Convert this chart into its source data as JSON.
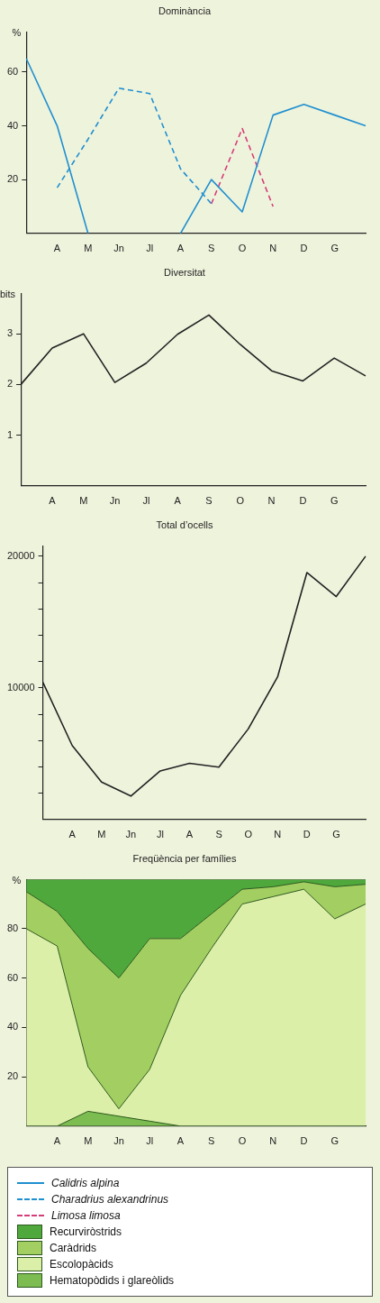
{
  "chart_data": [
    {
      "type": "line",
      "title": "Dominància",
      "ylabel": "%",
      "categories": [
        null,
        "A",
        "M",
        "Jn",
        "Jl",
        "A",
        "S",
        "O",
        "N",
        "D",
        "G",
        null
      ],
      "ylim": [
        0,
        75
      ],
      "yticks": [
        20,
        40,
        60
      ],
      "legend": "bottom",
      "series": [
        {
          "name": "Calidris alpina",
          "color": "#1f8fd0",
          "line_style": "solid",
          "values": [
            65,
            40,
            0,
            null,
            null,
            0,
            20,
            8,
            44,
            48,
            44,
            40
          ]
        },
        {
          "name": "Charadrius alexandrinus",
          "color": "#1f8fd0",
          "line_style": "dashed",
          "values": [
            null,
            17,
            35,
            54,
            52,
            24,
            11,
            null,
            null,
            null,
            null,
            null
          ]
        },
        {
          "name": "Limosa limosa",
          "color": "#d63c78",
          "line_style": "dashed",
          "values": [
            null,
            null,
            null,
            null,
            null,
            null,
            11,
            39,
            10,
            null,
            null,
            null
          ]
        }
      ]
    },
    {
      "type": "line",
      "title": "Diversitat",
      "ylabel": "bits",
      "categories": [
        null,
        "A",
        "M",
        "Jn",
        "Jl",
        "A",
        "S",
        "O",
        "N",
        "D",
        "G",
        null
      ],
      "ylim": [
        0,
        3.8
      ],
      "yticks": [
        1,
        2,
        3
      ],
      "series": [
        {
          "color": "#222222",
          "values": [
            2.0,
            2.72,
            3.0,
            2.04,
            2.42,
            2.99,
            3.37,
            2.79,
            2.27,
            2.07,
            2.52,
            2.17
          ]
        }
      ]
    },
    {
      "type": "line",
      "title": "Total d’ocells",
      "categories": [
        null,
        "A",
        "M",
        "Jn",
        "Jl",
        "A",
        "S",
        "O",
        "N",
        "D",
        "G",
        null
      ],
      "ylim": [
        0,
        20800
      ],
      "yticks": [
        {
          "value": 2000,
          "label": null
        },
        {
          "value": 4000,
          "label": null
        },
        {
          "value": 6000,
          "label": null
        },
        {
          "value": 8000,
          "label": null
        },
        10000,
        {
          "value": 12000,
          "label": null
        },
        {
          "value": 14000,
          "label": null
        },
        {
          "value": 16000,
          "label": null
        },
        {
          "value": 18000,
          "label": null
        },
        20000
      ],
      "series": [
        {
          "color": "#222222",
          "values": [
            10430,
            5620,
            2850,
            1780,
            3690,
            4270,
            3980,
            6880,
            10830,
            18760,
            16940,
            20000
          ]
        }
      ]
    },
    {
      "type": "area",
      "title": "Freqüència per famílies",
      "ylabel": "%",
      "stacked": true,
      "categories": [
        null,
        "A",
        "M",
        "Jn",
        "Jl",
        "A",
        "S",
        "O",
        "N",
        "D",
        "G",
        null
      ],
      "ylim": [
        0,
        100
      ],
      "yticks": [
        20,
        40,
        60,
        80
      ],
      "legend": "bottom",
      "series": [
        {
          "name": "Hematopòdids i glareòlids",
          "color": "#7cbc50",
          "values": [
            0,
            0,
            6,
            4,
            2,
            0,
            0,
            0,
            0,
            0,
            0,
            0
          ]
        },
        {
          "name": "Escolopàcids",
          "color": "#dcefa8",
          "values": [
            80,
            73,
            18,
            3,
            21,
            53,
            72,
            90,
            93,
            96,
            84,
            90
          ]
        },
        {
          "name": "Caràdrids",
          "color": "#a3cf62",
          "values": [
            15,
            14,
            48,
            53,
            53,
            23,
            14,
            6,
            4,
            3,
            13,
            8
          ]
        },
        {
          "name": "Recurviròstrids",
          "color": "#4ea83c",
          "values": [
            5,
            13,
            28,
            40,
            24,
            24,
            14,
            4,
            3,
            1,
            3,
            2
          ]
        }
      ]
    }
  ]
}
